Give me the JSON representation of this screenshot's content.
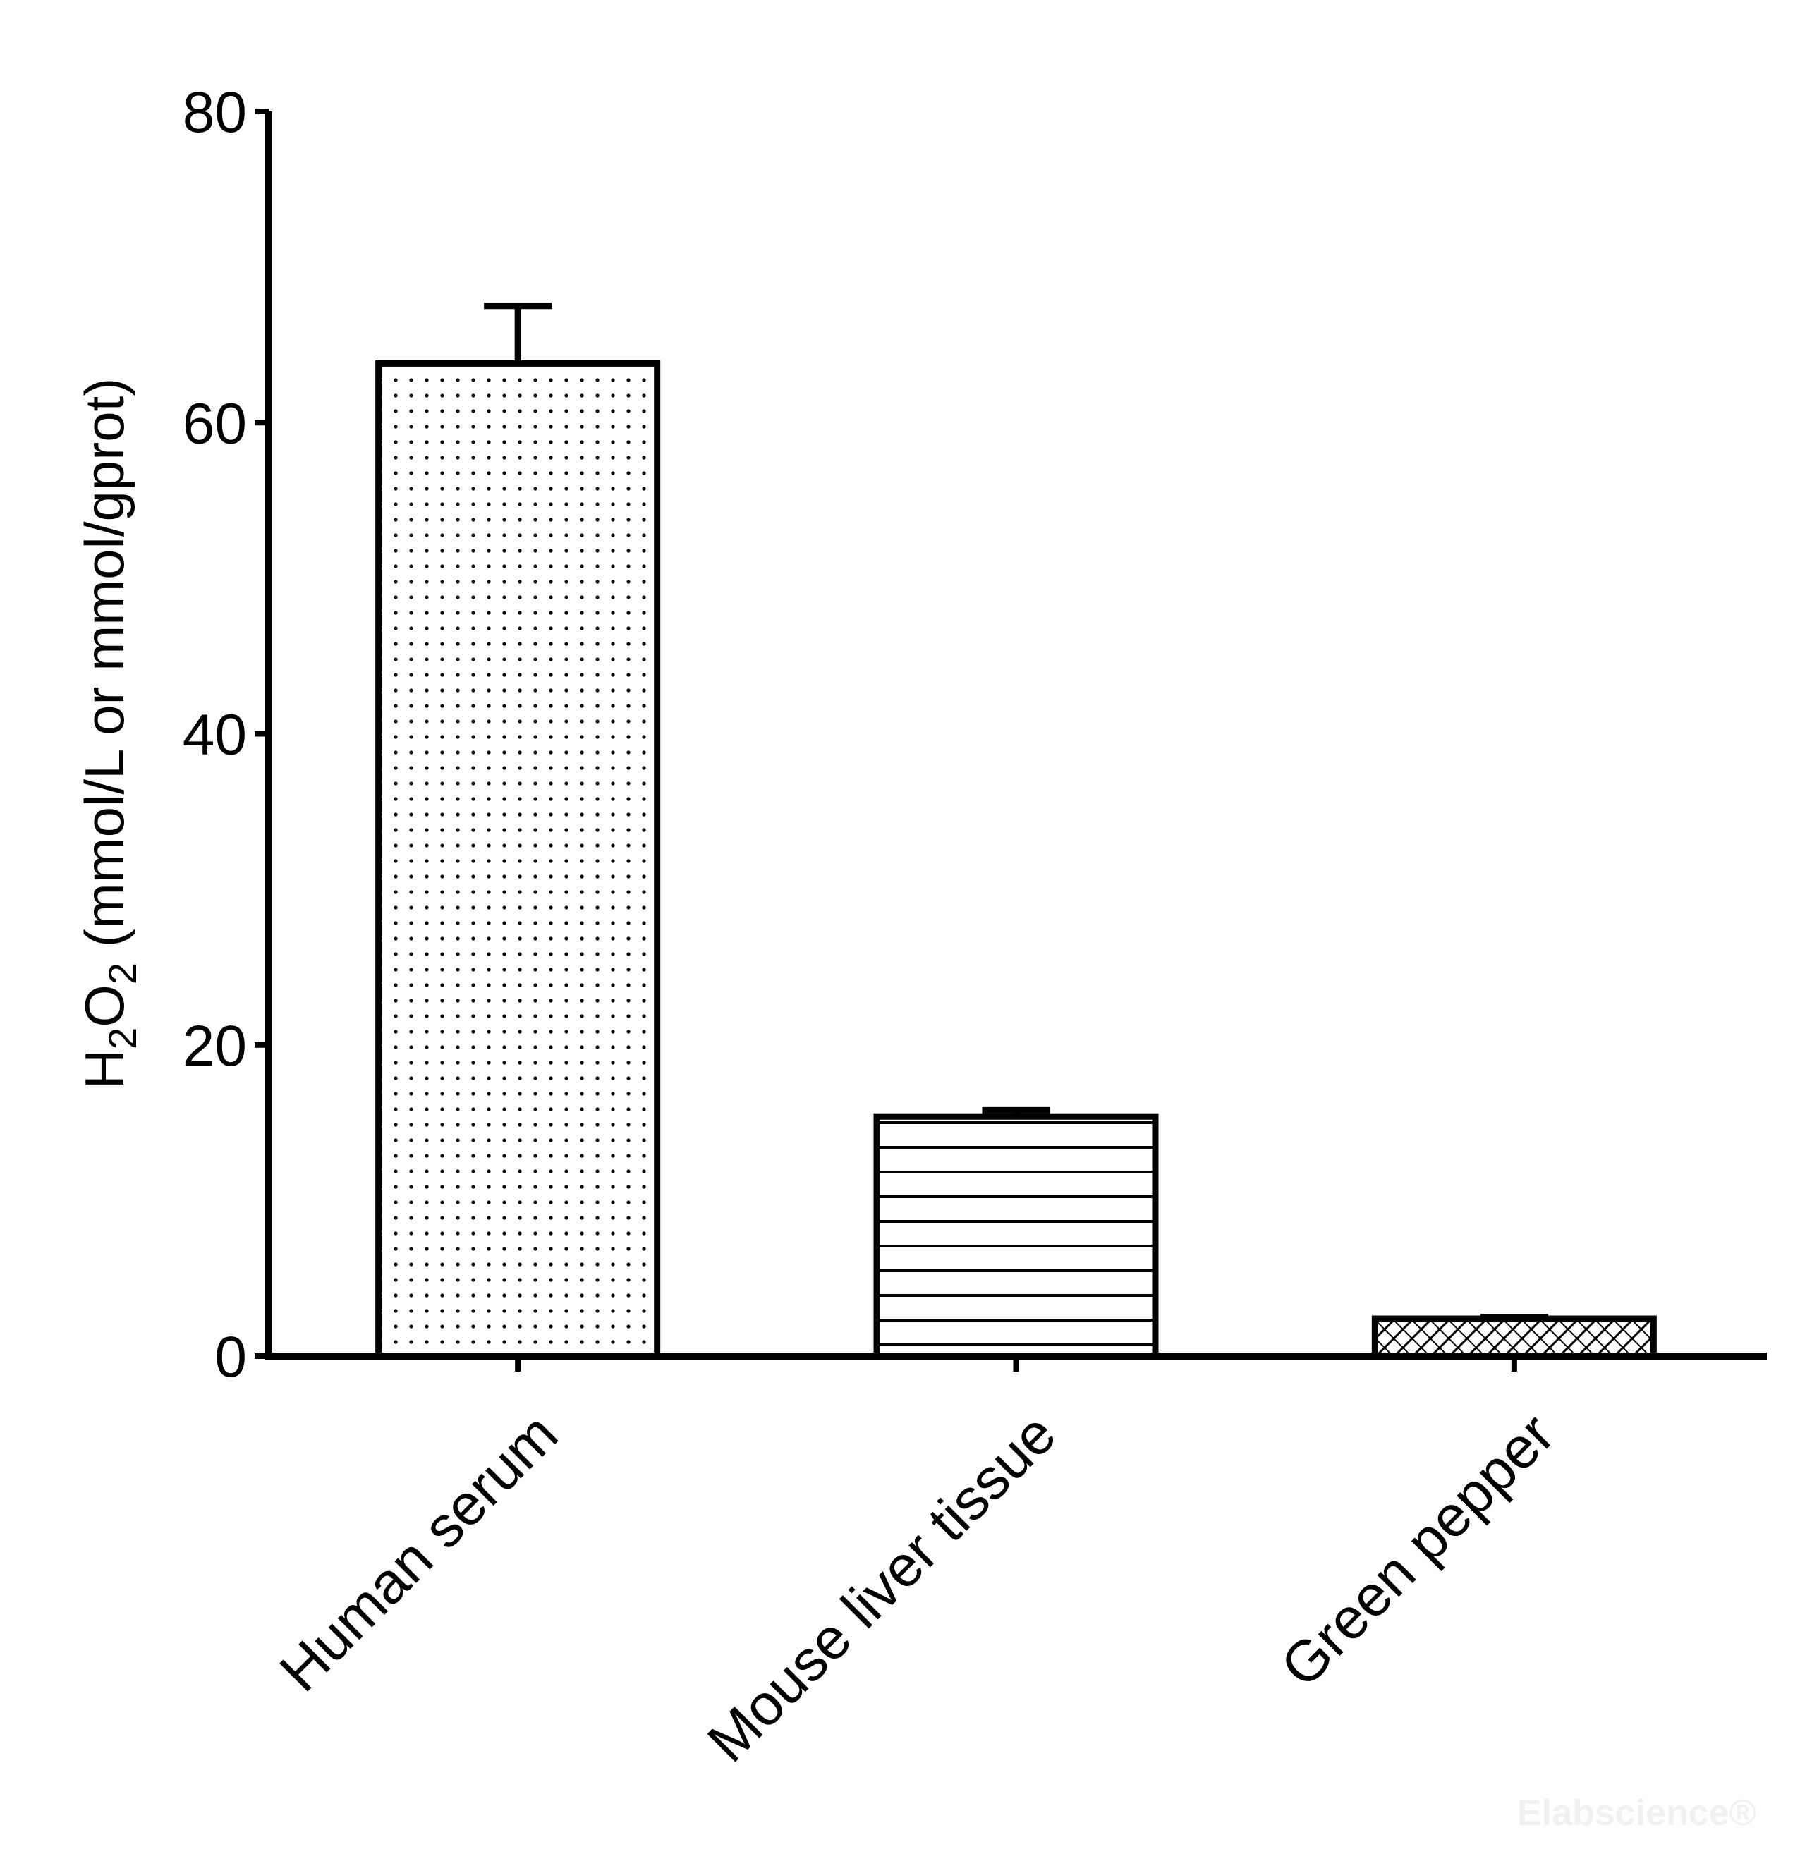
{
  "chart_data": {
    "type": "bar",
    "categories": [
      "Human serum",
      "Mouse liver tissue",
      "Green pepper"
    ],
    "values": [
      63.8,
      15.4,
      2.4
    ],
    "errors": [
      3.7,
      0.4,
      0.1
    ],
    "patterns": [
      "dots",
      "horizontal-lines",
      "crosshatch"
    ],
    "ylabel": {
      "base": "H",
      "sub1": "2",
      "mid": "O",
      "sub2": "2",
      "rest": " (mmol/L or mmol/gprot)"
    },
    "ylim": [
      0,
      80
    ],
    "yticks": [
      0,
      20,
      40,
      60,
      80
    ],
    "grid": false,
    "colors": {
      "bar_fill": "#ffffff",
      "stroke": "#000000"
    }
  },
  "watermark": "Elabscience®"
}
